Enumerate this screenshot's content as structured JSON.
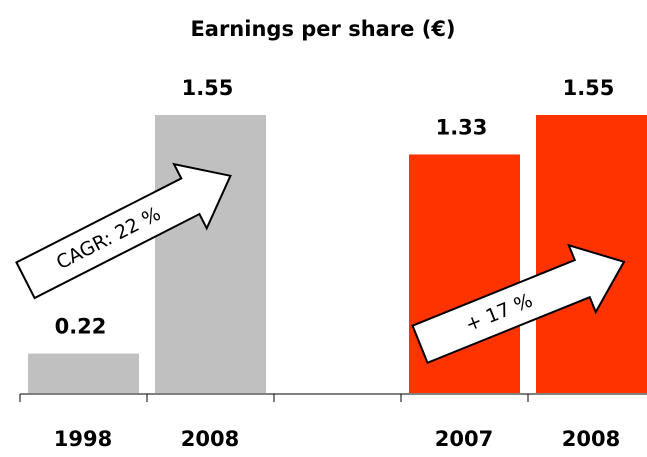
{
  "chart_data": {
    "type": "bar",
    "title": "Earnings per share (€)",
    "categories": [
      "1998",
      "2008",
      null,
      "2007",
      "2008"
    ],
    "values": [
      0.22,
      1.55,
      null,
      1.33,
      1.55
    ],
    "colors": [
      "#c0c0c0",
      "#c0c0c0",
      null,
      "#ff3300",
      "#ff3300"
    ],
    "annotations": [
      {
        "text": "CAGR: 22 %"
      },
      {
        "text": "+ 17 %"
      }
    ]
  }
}
